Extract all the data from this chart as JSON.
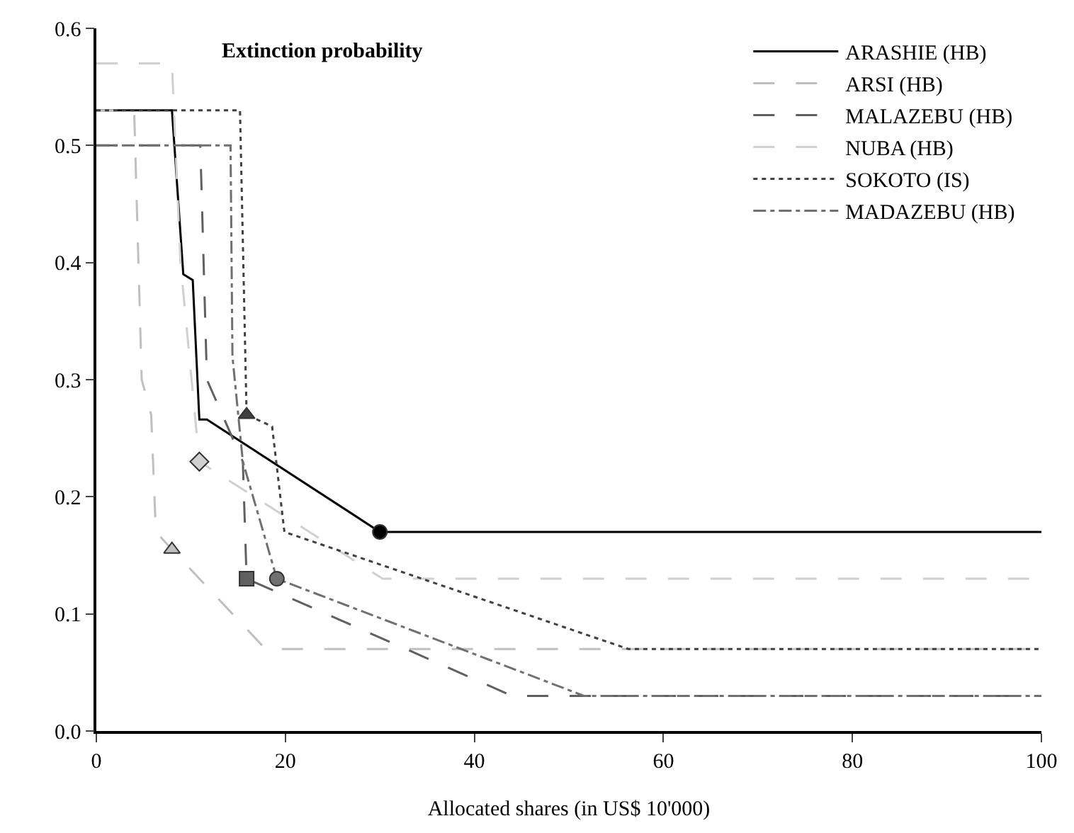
{
  "chart_data": {
    "type": "line",
    "title": "Extinction probability",
    "xlabel": "Allocated shares (in US$ 10'000)",
    "xlim": [
      0,
      100
    ],
    "xticks": [
      0,
      20,
      40,
      60,
      80,
      100
    ],
    "ylim": [
      0,
      0.6
    ],
    "yticks": [
      {
        "value": 0,
        "label": "0.0"
      },
      0.1,
      0.2,
      0.3,
      0.4,
      0.5,
      0.6
    ],
    "legend": "top right",
    "marker": "none",
    "series": [
      {
        "name": "ARASHIE (HB)",
        "color": "#000000",
        "line_style": "solid",
        "x": [
          0,
          8,
          9.2,
          10.2,
          10.9,
          11.7,
          30,
          100
        ],
        "values": [
          0.53,
          0.53,
          0.39,
          0.385,
          0.266,
          0.266,
          0.17,
          0.17
        ]
      },
      {
        "name": "ARSI (HB)",
        "color": "#c0c0c0",
        "line_style": "dashed",
        "x": [
          0,
          4,
          4.8,
          5.8,
          6.3,
          8,
          17.9,
          100
        ],
        "values": [
          0.53,
          0.53,
          0.3,
          0.27,
          0.17,
          0.155,
          0.07,
          0.07
        ]
      },
      {
        "name": "MALAZEBU (HB)",
        "color": "#606060",
        "line_style": "dashed",
        "x": [
          0,
          11,
          11.7,
          15.5,
          15.9,
          44,
          100
        ],
        "values": [
          0.5,
          0.5,
          0.3,
          0.23,
          0.13,
          0.03,
          0.03
        ]
      },
      {
        "name": "NUBA (HB)",
        "color": "#d0d0d0",
        "line_style": "dashed",
        "x": [
          0,
          8,
          8.9,
          10.9,
          30.3,
          100
        ],
        "values": [
          0.57,
          0.57,
          0.4,
          0.23,
          0.13,
          0.13
        ]
      },
      {
        "name": "SOKOTO (IS)",
        "color": "#404040",
        "line_style": "dotted",
        "x": [
          0,
          15.2,
          15.9,
          18.6,
          19.9,
          56.3,
          100
        ],
        "values": [
          0.53,
          0.53,
          0.27,
          0.26,
          0.17,
          0.07,
          0.07
        ]
      },
      {
        "name": "MADAZEBU (HB)",
        "color": "#707070",
        "line_style": "dashdot",
        "x": [
          0,
          14.2,
          14.4,
          15.5,
          19.1,
          51.6,
          100
        ],
        "values": [
          0.5,
          0.5,
          0.32,
          0.23,
          0.13,
          0.03,
          0.03
        ]
      },
      {
        "type": "scatter",
        "color": "#000000",
        "marker": "circle",
        "x": [
          30
        ],
        "values": [
          0.17
        ]
      },
      {
        "type": "scatter",
        "color": "#c0c0c0",
        "marker": "triangle",
        "x": [
          8
        ],
        "values": [
          0.155
        ]
      },
      {
        "type": "scatter",
        "color": "#606060",
        "marker": "square",
        "x": [
          15.9
        ],
        "values": [
          0.13
        ]
      },
      {
        "type": "scatter",
        "color": "#d0d0d0",
        "marker": "diamond",
        "x": [
          10.9
        ],
        "values": [
          0.23
        ]
      },
      {
        "type": "scatter",
        "color": "#404040",
        "marker": "triangle",
        "x": [
          15.9
        ],
        "values": [
          0.27
        ]
      },
      {
        "type": "scatter",
        "color": "#707070",
        "marker": "circle",
        "x": [
          19.1
        ],
        "values": [
          0.13
        ]
      }
    ]
  }
}
